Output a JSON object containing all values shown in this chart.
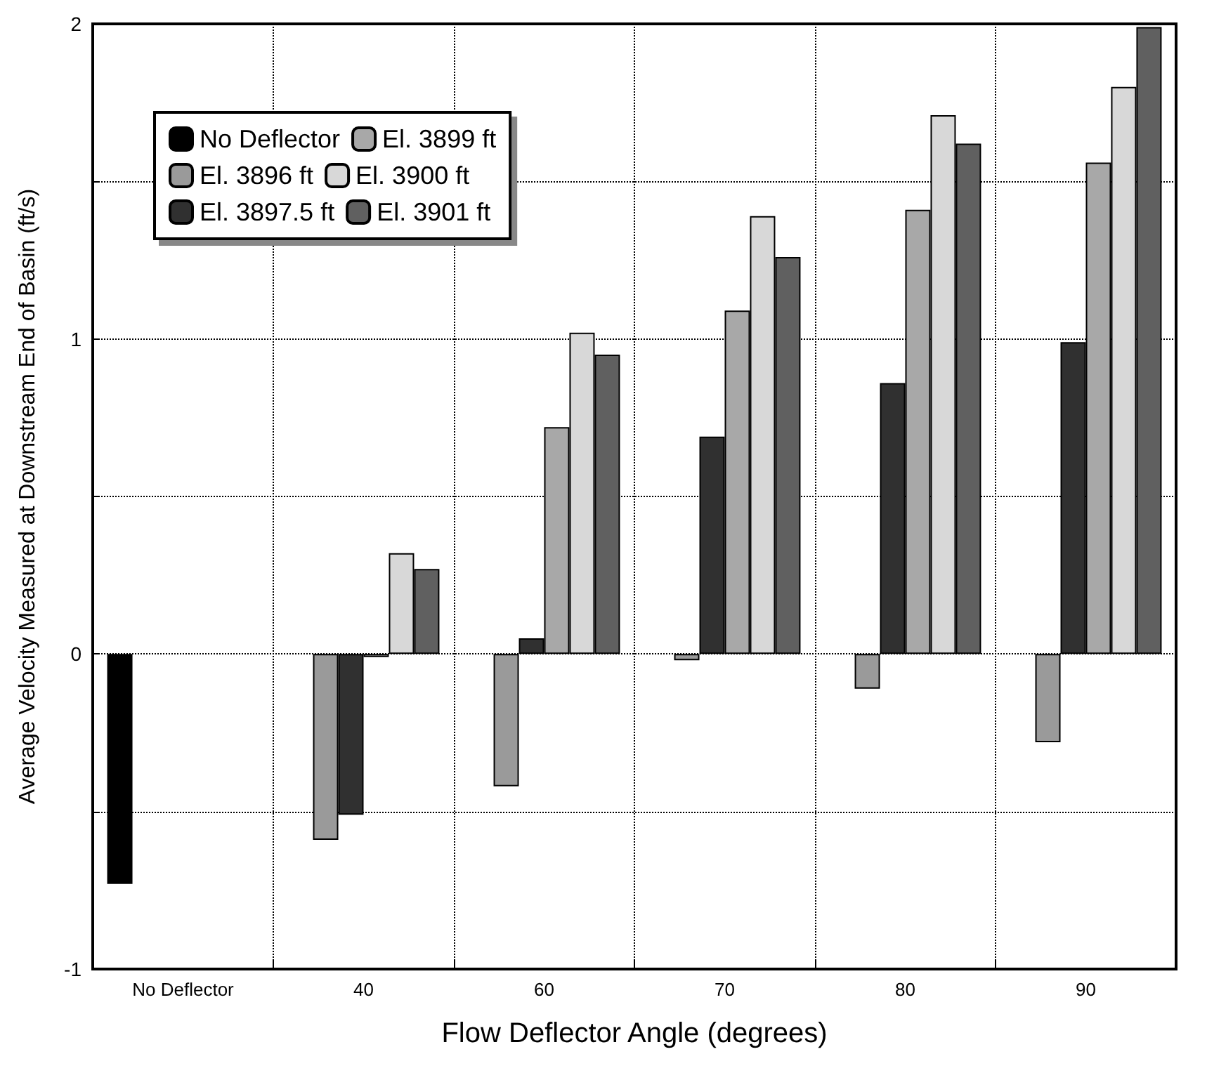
{
  "chart_data": {
    "type": "bar",
    "xlabel": "Flow Deflector Angle (degrees)",
    "ylabel": "Average Velocity Measured at Downstream End of Basin (ft/s)",
    "categories": [
      "No Deflector",
      "40",
      "60",
      "70",
      "80",
      "90"
    ],
    "series": [
      {
        "name": "No Deflector",
        "color": "#000000",
        "values": [
          -0.73,
          null,
          null,
          null,
          null,
          null
        ]
      },
      {
        "name": "El. 3896 ft",
        "color": "#9a9a9a",
        "values": [
          null,
          -0.59,
          -0.42,
          -0.02,
          -0.11,
          -0.28
        ]
      },
      {
        "name": "El. 3897.5 ft",
        "color": "#303030",
        "values": [
          null,
          -0.51,
          0.05,
          0.69,
          0.86,
          0.99
        ]
      },
      {
        "name": "El. 3899 ft",
        "color": "#a8a8a8",
        "values": [
          null,
          -0.01,
          0.72,
          1.09,
          1.41,
          1.56
        ]
      },
      {
        "name": "El. 3900 ft",
        "color": "#d8d8d8",
        "values": [
          null,
          0.32,
          1.02,
          1.39,
          1.71,
          1.8
        ]
      },
      {
        "name": "El. 3901 ft",
        "color": "#606060",
        "values": [
          null,
          0.27,
          0.95,
          1.26,
          1.62,
          1.99
        ]
      }
    ],
    "ylim": [
      -1,
      2
    ],
    "yticks": [
      -1,
      {
        "value": -0.5,
        "label": null
      },
      0,
      {
        "value": 0.5,
        "label": null
      },
      1,
      {
        "value": 1.5,
        "label": null
      },
      2
    ],
    "grid": true,
    "legend": "top left"
  }
}
